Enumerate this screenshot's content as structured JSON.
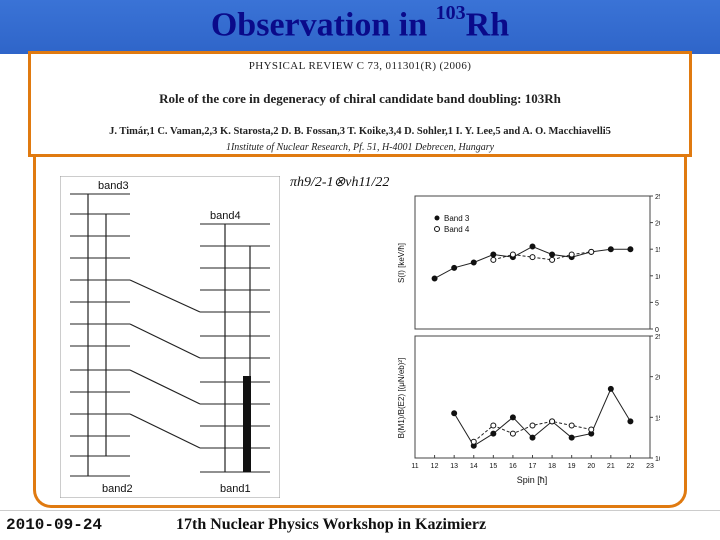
{
  "slide": {
    "title_main": "Observation in ",
    "title_sup": "103",
    "title_elem": "Rh",
    "footer_date": "2010-09-24",
    "footer_event": "17th Nuclear Physics Workshop in Kazimierz"
  },
  "paper": {
    "journal_ref": "PHYSICAL REVIEW C 73, 011301(R) (2006)",
    "title": "Role of the core in degeneracy of chiral candidate band doubling: 103Rh",
    "authors": "J. Timár,1 C. Vaman,2,3 K. Starosta,2 D. B. Fossan,3 T. Koike,3,4 D. Sohler,1 I. Y. Lee,5 and A. O. Macchiavelli5",
    "affiliation": "1Institute of Nuclear Research, Pf. 51, H-4001 Debrecen, Hungary"
  },
  "figure": {
    "configuration": "πh9/2-1⊗νh11/22",
    "band_labels": [
      "band3",
      "band4",
      "band2",
      "band1"
    ],
    "legend": [
      "Band 3",
      "Band 4"
    ],
    "top_ylabel": "S(I) [keV/ħ]",
    "bottom_ylabel": "B(M1)/B(E2) [(μN/eb)²]",
    "xlabel": "Spin [ħ]"
  },
  "chart_data": [
    {
      "type": "scatter",
      "title": "",
      "xlabel": "Spin [ħ]",
      "ylabel": "S(I) [keV/ħ]",
      "xlim": [
        11,
        23
      ],
      "ylim": [
        0,
        25
      ],
      "yticks": [
        0,
        5,
        10,
        15,
        20,
        25
      ],
      "legend_position": "top-left",
      "series": [
        {
          "name": "Band 3",
          "marker": "filled",
          "x": [
            12,
            13,
            14,
            15,
            16,
            17,
            18,
            19,
            20,
            21,
            22
          ],
          "y": [
            9.5,
            11.5,
            12.5,
            14.0,
            13.5,
            15.5,
            14.0,
            13.5,
            14.5,
            15.0,
            15.0
          ]
        },
        {
          "name": "Band 4",
          "marker": "open",
          "x": [
            15,
            16,
            17,
            18,
            19,
            20
          ],
          "y": [
            13.0,
            14.0,
            13.5,
            13.0,
            14.0,
            14.5
          ]
        }
      ]
    },
    {
      "type": "line",
      "title": "",
      "xlabel": "Spin [ħ]",
      "ylabel": "B(M1)/B(E2) [(μN/eb)²]",
      "xlim": [
        11,
        23
      ],
      "ylim": [
        10,
        25
      ],
      "xticks": [
        11,
        12,
        13,
        14,
        15,
        16,
        17,
        18,
        19,
        20,
        21,
        22,
        23
      ],
      "yticks": [
        10,
        15,
        20,
        25
      ],
      "series": [
        {
          "name": "Band 3",
          "marker": "filled",
          "x": [
            13,
            14,
            15,
            16,
            17,
            18,
            19,
            20,
            21,
            22
          ],
          "y": [
            15.5,
            11.5,
            13.0,
            15.0,
            12.5,
            14.5,
            12.5,
            13.0,
            18.5,
            14.5
          ]
        },
        {
          "name": "Band 4",
          "marker": "open",
          "x": [
            14,
            15,
            16,
            17,
            18,
            19,
            20
          ],
          "y": [
            12.0,
            14.0,
            13.0,
            14.0,
            14.5,
            14.0,
            13.5
          ]
        }
      ]
    }
  ]
}
